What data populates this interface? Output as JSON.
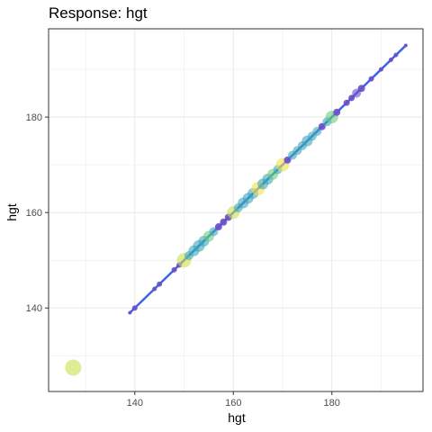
{
  "chart_data": {
    "type": "scatter",
    "title": "Response: hgt",
    "xlabel": "hgt",
    "ylabel": "hgt",
    "xlim": [
      122.5,
      198.5
    ],
    "ylim": [
      122.5,
      198.5
    ],
    "x_ticks": [
      140,
      160,
      180
    ],
    "y_ticks": [
      140,
      160,
      180
    ],
    "grid": true,
    "colors": {
      "line": "#3e64e6",
      "point_dark": "#6a4fc7",
      "point_teal": "#3aa7b8",
      "point_green": "#6ccc7a",
      "point_lime": "#c9de4f",
      "point_yellow": "#f2e14c",
      "grid": "#ebebeb",
      "panel_border": "#333333"
    },
    "fit_line": {
      "x": [
        139,
        195
      ],
      "y": [
        139,
        195
      ]
    },
    "points": [
      {
        "x": 127.5,
        "y": 127.5,
        "size": 9,
        "color": "lime"
      },
      {
        "x": 139,
        "y": 139,
        "size": 2,
        "color": "dark"
      },
      {
        "x": 140,
        "y": 140,
        "size": 3,
        "color": "dark"
      },
      {
        "x": 144,
        "y": 144,
        "size": 2.5,
        "color": "dark"
      },
      {
        "x": 145,
        "y": 145,
        "size": 3,
        "color": "dark"
      },
      {
        "x": 148,
        "y": 148,
        "size": 3,
        "color": "dark"
      },
      {
        "x": 149,
        "y": 149,
        "size": 3,
        "color": "dark"
      },
      {
        "x": 150,
        "y": 150,
        "size": 8,
        "color": "lime"
      },
      {
        "x": 151,
        "y": 151,
        "size": 5,
        "color": "teal"
      },
      {
        "x": 152,
        "y": 152,
        "size": 6,
        "color": "teal"
      },
      {
        "x": 153,
        "y": 153,
        "size": 6.5,
        "color": "teal"
      },
      {
        "x": 154,
        "y": 154,
        "size": 6,
        "color": "teal"
      },
      {
        "x": 155,
        "y": 155,
        "size": 6,
        "color": "green"
      },
      {
        "x": 156,
        "y": 156,
        "size": 5,
        "color": "teal"
      },
      {
        "x": 157,
        "y": 157,
        "size": 4,
        "color": "dark"
      },
      {
        "x": 158,
        "y": 158,
        "size": 4,
        "color": "dark"
      },
      {
        "x": 159,
        "y": 159,
        "size": 4,
        "color": "dark"
      },
      {
        "x": 160,
        "y": 160,
        "size": 7,
        "color": "lime"
      },
      {
        "x": 161,
        "y": 161,
        "size": 5,
        "color": "teal"
      },
      {
        "x": 162,
        "y": 162,
        "size": 6,
        "color": "teal"
      },
      {
        "x": 163,
        "y": 163,
        "size": 6,
        "color": "teal"
      },
      {
        "x": 164,
        "y": 164,
        "size": 6,
        "color": "teal"
      },
      {
        "x": 165,
        "y": 165,
        "size": 7.5,
        "color": "yellow"
      },
      {
        "x": 166,
        "y": 166,
        "size": 6,
        "color": "teal"
      },
      {
        "x": 167,
        "y": 167,
        "size": 6,
        "color": "teal"
      },
      {
        "x": 168,
        "y": 168,
        "size": 6,
        "color": "green"
      },
      {
        "x": 169,
        "y": 169,
        "size": 5,
        "color": "teal"
      },
      {
        "x": 170,
        "y": 170,
        "size": 7.5,
        "color": "yellow"
      },
      {
        "x": 171,
        "y": 171,
        "size": 4,
        "color": "dark"
      },
      {
        "x": 172,
        "y": 172,
        "size": 5,
        "color": "teal"
      },
      {
        "x": 173,
        "y": 173,
        "size": 5,
        "color": "teal"
      },
      {
        "x": 174,
        "y": 174,
        "size": 5,
        "color": "teal"
      },
      {
        "x": 175,
        "y": 175,
        "size": 6,
        "color": "teal"
      },
      {
        "x": 176,
        "y": 176,
        "size": 5,
        "color": "teal"
      },
      {
        "x": 177,
        "y": 177,
        "size": 5,
        "color": "teal"
      },
      {
        "x": 178,
        "y": 178,
        "size": 4,
        "color": "dark"
      },
      {
        "x": 179,
        "y": 179,
        "size": 5,
        "color": "teal"
      },
      {
        "x": 180,
        "y": 180,
        "size": 7,
        "color": "green"
      },
      {
        "x": 181,
        "y": 181,
        "size": 4,
        "color": "dark"
      },
      {
        "x": 183,
        "y": 183,
        "size": 3.5,
        "color": "dark"
      },
      {
        "x": 184,
        "y": 184,
        "size": 3.5,
        "color": "dark"
      },
      {
        "x": 185,
        "y": 185,
        "size": 5,
        "color": "dark"
      },
      {
        "x": 186,
        "y": 186,
        "size": 4,
        "color": "dark"
      },
      {
        "x": 188,
        "y": 188,
        "size": 3,
        "color": "dark"
      },
      {
        "x": 190,
        "y": 190,
        "size": 2.5,
        "color": "dark"
      },
      {
        "x": 192,
        "y": 192,
        "size": 2.5,
        "color": "dark"
      },
      {
        "x": 193,
        "y": 193,
        "size": 2.5,
        "color": "dark"
      },
      {
        "x": 195,
        "y": 195,
        "size": 2,
        "color": "dark"
      }
    ]
  }
}
